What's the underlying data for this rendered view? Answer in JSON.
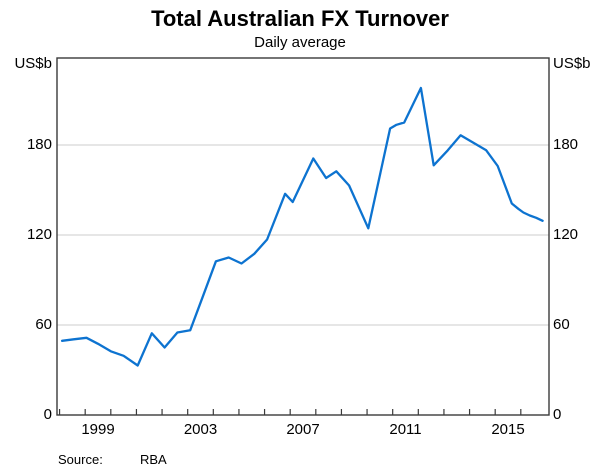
{
  "chart": {
    "title": "Total Australian FX Turnover",
    "subtitle": "Daily average",
    "unit_left": "US$b",
    "unit_right": "US$b"
  },
  "source": {
    "label": "Source:",
    "value": "RBA"
  },
  "colors": {
    "line": "#0d73d0",
    "frame": "#3a3a3a",
    "grid": "#cccccc",
    "text": "#000000"
  },
  "chart_data": {
    "type": "line",
    "title": "Total Australian FX Turnover",
    "subtitle": "Daily average",
    "ylabel": "US$b",
    "ylabel_right": "US$b",
    "xlabel": "",
    "ylim": [
      0,
      238
    ],
    "xlim": [
      1997.9,
      2017.1
    ],
    "yticks": [
      0,
      60,
      120,
      180
    ],
    "xticks": [
      1998,
      1999,
      2000,
      2001,
      2002,
      2003,
      2004,
      2005,
      2006,
      2007,
      2008,
      2009,
      2010,
      2011,
      2012,
      2013,
      2014,
      2015,
      2016
    ],
    "xtick_labels": [
      1999,
      2003,
      2007,
      2011,
      2015
    ],
    "grid": "horizontal",
    "legend": "none",
    "series": [
      {
        "name": "Total Australian FX turnover, daily average (US$b)",
        "points": [
          [
            1998.1,
            49.5
          ],
          [
            1998.55,
            50.5
          ],
          [
            1999.05,
            51.5
          ],
          [
            1999.5,
            47.5
          ],
          [
            2000.0,
            42.5
          ],
          [
            2000.5,
            39.5
          ],
          [
            2001.05,
            33.0
          ],
          [
            2001.6,
            54.5
          ],
          [
            2002.1,
            45.0
          ],
          [
            2002.6,
            55.0
          ],
          [
            2003.1,
            56.5
          ],
          [
            2003.6,
            79.5
          ],
          [
            2004.1,
            102.5
          ],
          [
            2004.6,
            105.0
          ],
          [
            2005.1,
            101.0
          ],
          [
            2005.6,
            107.5
          ],
          [
            2006.1,
            117.0
          ],
          [
            2006.8,
            147.5
          ],
          [
            2007.1,
            142.0
          ],
          [
            2007.9,
            171.0
          ],
          [
            2008.4,
            158.0
          ],
          [
            2008.8,
            162.5
          ],
          [
            2009.3,
            153.0
          ],
          [
            2010.05,
            124.5
          ],
          [
            2010.9,
            191.0
          ],
          [
            2011.15,
            193.5
          ],
          [
            2011.45,
            195.0
          ],
          [
            2012.1,
            218.0
          ],
          [
            2012.6,
            166.5
          ],
          [
            2013.15,
            176.5
          ],
          [
            2013.65,
            186.5
          ],
          [
            2014.15,
            181.5
          ],
          [
            2014.65,
            176.5
          ],
          [
            2015.1,
            166.0
          ],
          [
            2015.65,
            141.0
          ],
          [
            2015.9,
            137.5
          ],
          [
            2016.1,
            135.0
          ],
          [
            2016.35,
            133.0
          ],
          [
            2016.6,
            131.5
          ],
          [
            2016.85,
            129.5
          ]
        ]
      }
    ]
  }
}
